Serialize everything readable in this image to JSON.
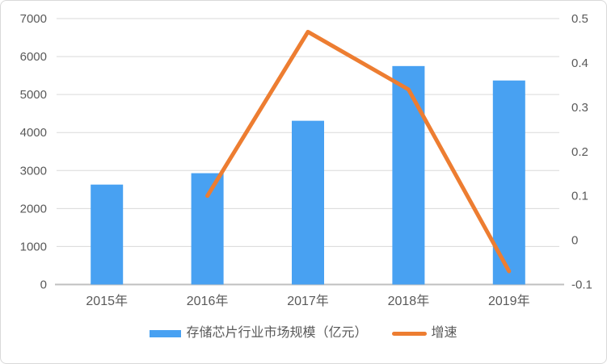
{
  "chart_data": {
    "type": "bar",
    "categories": [
      "2015年",
      "2016年",
      "2017年",
      "2018年",
      "2019年"
    ],
    "series": [
      {
        "name": "存储芯片行业市场规模（亿元）",
        "type": "bar",
        "axis": "left",
        "values": [
          2630,
          2930,
          4310,
          5750,
          5370
        ]
      },
      {
        "name": "增速",
        "type": "line",
        "axis": "right",
        "values": [
          null,
          0.1,
          0.47,
          0.34,
          -0.07
        ]
      }
    ],
    "left_axis": {
      "min": 0,
      "max": 7000,
      "step": 1000,
      "ticks": [
        "0",
        "1000",
        "2000",
        "3000",
        "4000",
        "5000",
        "6000",
        "7000"
      ]
    },
    "right_axis": {
      "min": -0.1,
      "max": 0.5,
      "step": 0.1,
      "ticks": [
        "-0.1",
        "0",
        "0.1",
        "0.2",
        "0.3",
        "0.4",
        "0.5"
      ]
    },
    "grid": "horizontal-solid",
    "legend_position": "bottom",
    "colors": {
      "bar": "#48A1F2",
      "line": "#ED7D31",
      "gridline": "#D9D9D9",
      "axis_line": "#BFBFBF",
      "tick_text": "#595959",
      "border": "#D9D9D9",
      "background": "#FFFFFF"
    }
  }
}
